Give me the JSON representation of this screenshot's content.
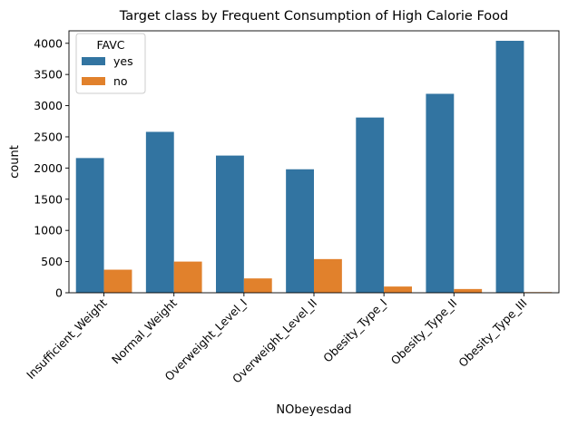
{
  "chart_data": {
    "type": "bar",
    "title": "Target class by Frequent Consumption of High Calorie Food",
    "xlabel": "NObeyesdad",
    "ylabel": "count",
    "categories": [
      "Insufficient_Weight",
      "Normal_Weight",
      "Overweight_Level_I",
      "Overweight_Level_II",
      "Obesity_Type_I",
      "Obesity_Type_II",
      "Obesity_Type_III"
    ],
    "series": [
      {
        "name": "yes",
        "color": "#3274a1",
        "values": [
          2160,
          2580,
          2200,
          1980,
          2810,
          3190,
          4040
        ]
      },
      {
        "name": "no",
        "color": "#e1812c",
        "values": [
          370,
          500,
          230,
          540,
          100,
          60,
          10
        ]
      }
    ],
    "ylim": [
      0,
      4200
    ],
    "yticks": [
      0,
      500,
      1000,
      1500,
      2000,
      2500,
      3000,
      3500,
      4000
    ],
    "ytick_labels": [
      "0",
      "500",
      "1000",
      "1500",
      "2000",
      "2500",
      "3000",
      "3500",
      "4000"
    ],
    "legend": {
      "title": "FAVC",
      "position": "top-left"
    },
    "grid": false
  }
}
